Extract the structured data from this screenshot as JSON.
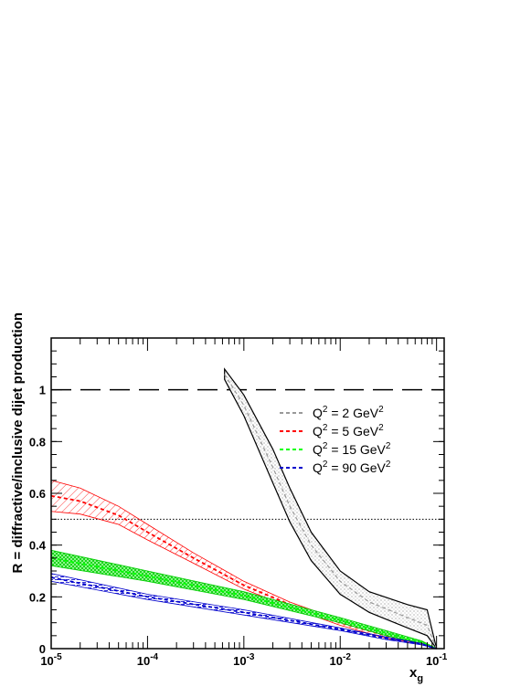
{
  "chart_data": {
    "type": "line",
    "x_scale": "log",
    "xlim": [
      1e-05,
      0.12
    ],
    "ylim": [
      0,
      1.2
    ],
    "xlabel": {
      "main": "x",
      "sub": "g"
    },
    "ylabel": "R = diffractive/inclusive dijet production",
    "x_ticks": [
      {
        "value": 1e-05,
        "base": "10",
        "exp": "-5"
      },
      {
        "value": 0.0001,
        "base": "10",
        "exp": "-4"
      },
      {
        "value": 0.001,
        "base": "10",
        "exp": "-3"
      },
      {
        "value": 0.01,
        "base": "10",
        "exp": "-2"
      },
      {
        "value": 0.1,
        "base": "10",
        "exp": "-1"
      }
    ],
    "y_ticks": [
      {
        "value": 0,
        "label": "0"
      },
      {
        "value": 0.2,
        "label": "0.2"
      },
      {
        "value": 0.4,
        "label": "0.4"
      },
      {
        "value": 0.6,
        "label": "0.6"
      },
      {
        "value": 0.8,
        "label": "0.8"
      },
      {
        "value": 1.0,
        "label": "1"
      }
    ],
    "reference_lines": [
      {
        "y": 1.0,
        "style": "long-dash"
      },
      {
        "y": 0.5,
        "style": "dotted"
      }
    ],
    "grid": false,
    "legend_position": "top-right",
    "series": [
      {
        "name": {
          "pre": "Q",
          "sup": "2",
          "mid": " = 2 GeV",
          "sup2": "2"
        },
        "color": "#999999",
        "band_outline": "#000000",
        "fill": "dots",
        "x": [
          0.00063,
          0.001,
          0.002,
          0.003,
          0.005,
          0.01,
          0.02,
          0.05,
          0.08,
          0.1
        ],
        "upper": [
          1.08,
          0.98,
          0.77,
          0.62,
          0.45,
          0.3,
          0.22,
          0.17,
          0.15,
          0.0
        ],
        "lower": [
          1.04,
          0.9,
          0.64,
          0.49,
          0.34,
          0.21,
          0.14,
          0.08,
          0.05,
          0.0
        ],
        "central": [
          1.06,
          0.94,
          0.7,
          0.55,
          0.4,
          0.26,
          0.18,
          0.12,
          0.09,
          0.0
        ]
      },
      {
        "name": {
          "pre": "Q",
          "sup": "2",
          "mid": " = 5 GeV",
          "sup2": "2"
        },
        "color": "#ff0000",
        "band_outline": "#ff0000",
        "fill": "hatch",
        "x": [
          1e-05,
          2e-05,
          5e-05,
          0.0001,
          0.0003,
          0.001,
          0.003,
          0.01,
          0.03,
          0.07,
          0.1
        ],
        "upper": [
          0.65,
          0.62,
          0.55,
          0.48,
          0.37,
          0.26,
          0.18,
          0.11,
          0.06,
          0.03,
          0.0
        ],
        "lower": [
          0.53,
          0.52,
          0.48,
          0.42,
          0.33,
          0.23,
          0.16,
          0.09,
          0.04,
          0.02,
          0.0
        ],
        "central": [
          0.59,
          0.57,
          0.515,
          0.45,
          0.35,
          0.245,
          0.17,
          0.1,
          0.05,
          0.025,
          0.0
        ]
      },
      {
        "name": {
          "pre": "Q",
          "sup": "2",
          "mid": " = 15 GeV",
          "sup2": "2"
        },
        "color": "#00ff00",
        "band_outline": "#00cc00",
        "fill": "crosshatch",
        "x": [
          1e-05,
          0.0001,
          0.001,
          0.01,
          0.03,
          0.07,
          0.1
        ],
        "upper": [
          0.38,
          0.3,
          0.22,
          0.12,
          0.07,
          0.03,
          0.0
        ],
        "lower": [
          0.32,
          0.26,
          0.19,
          0.1,
          0.05,
          0.02,
          0.0
        ],
        "central": [
          0.35,
          0.28,
          0.205,
          0.11,
          0.06,
          0.025,
          0.0
        ]
      },
      {
        "name": {
          "pre": "Q",
          "sup": "2",
          "mid": " = 90 GeV",
          "sup2": "2"
        },
        "color": "#0000cc",
        "band_outline": "#0000cc",
        "fill": "dashes",
        "x": [
          1e-05,
          0.0001,
          0.001,
          0.01,
          0.03,
          0.07,
          0.1
        ],
        "upper": [
          0.29,
          0.21,
          0.15,
          0.08,
          0.045,
          0.02,
          0.0
        ],
        "lower": [
          0.26,
          0.19,
          0.13,
          0.07,
          0.035,
          0.015,
          0.0
        ],
        "central": [
          0.275,
          0.2,
          0.14,
          0.075,
          0.04,
          0.017,
          0.0
        ]
      }
    ]
  }
}
